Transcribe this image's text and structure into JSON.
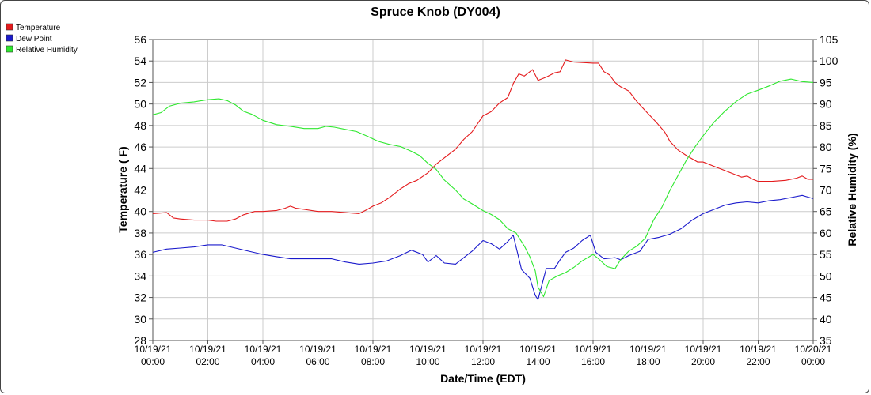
{
  "chart_data": {
    "type": "line",
    "title": "Spruce Knob (DY004)",
    "xlabel": "Date/Time (EDT)",
    "ylabel_left": "Temperature ( F)",
    "ylabel_right": "Relative Humidity (%)",
    "x_ticks": [
      [
        "10/19/21",
        "00:00"
      ],
      [
        "10/19/21",
        "02:00"
      ],
      [
        "10/19/21",
        "04:00"
      ],
      [
        "10/19/21",
        "06:00"
      ],
      [
        "10/19/21",
        "08:00"
      ],
      [
        "10/19/21",
        "10:00"
      ],
      [
        "10/19/21",
        "12:00"
      ],
      [
        "10/19/21",
        "14:00"
      ],
      [
        "10/19/21",
        "16:00"
      ],
      [
        "10/19/21",
        "18:00"
      ],
      [
        "10/19/21",
        "20:00"
      ],
      [
        "10/19/21",
        "22:00"
      ],
      [
        "10/20/21",
        "00:00"
      ]
    ],
    "x_range_hours": [
      0,
      24
    ],
    "y_left_range": [
      28,
      56
    ],
    "y_left_ticks": [
      28,
      30,
      32,
      34,
      36,
      38,
      40,
      42,
      44,
      46,
      48,
      50,
      52,
      54,
      56
    ],
    "y_right_range": [
      35,
      105
    ],
    "y_right_ticks": [
      35,
      40,
      45,
      50,
      55,
      60,
      65,
      70,
      75,
      80,
      85,
      90,
      95,
      100,
      105
    ],
    "grid": true,
    "legend_position": "top-left",
    "series": [
      {
        "name": "Temperature",
        "color": "#e41a1c",
        "axis": "left",
        "points": [
          [
            0,
            39.8
          ],
          [
            0.5,
            39.9
          ],
          [
            0.75,
            39.4
          ],
          [
            1,
            39.3
          ],
          [
            1.5,
            39.2
          ],
          [
            2,
            39.2
          ],
          [
            2.3,
            39.1
          ],
          [
            2.7,
            39.1
          ],
          [
            3,
            39.3
          ],
          [
            3.3,
            39.7
          ],
          [
            3.7,
            40.0
          ],
          [
            4,
            40.0
          ],
          [
            4.5,
            40.1
          ],
          [
            4.8,
            40.3
          ],
          [
            5,
            40.5
          ],
          [
            5.2,
            40.3
          ],
          [
            5.5,
            40.2
          ],
          [
            6,
            40.0
          ],
          [
            6.5,
            40.0
          ],
          [
            7,
            39.9
          ],
          [
            7.5,
            39.8
          ],
          [
            7.8,
            40.2
          ],
          [
            8,
            40.5
          ],
          [
            8.3,
            40.8
          ],
          [
            8.6,
            41.3
          ],
          [
            9,
            42.1
          ],
          [
            9.3,
            42.6
          ],
          [
            9.6,
            42.9
          ],
          [
            10,
            43.6
          ],
          [
            10.3,
            44.4
          ],
          [
            10.6,
            45.0
          ],
          [
            11,
            45.8
          ],
          [
            11.3,
            46.7
          ],
          [
            11.6,
            47.4
          ],
          [
            12,
            48.9
          ],
          [
            12.3,
            49.3
          ],
          [
            12.6,
            50.1
          ],
          [
            12.9,
            50.6
          ],
          [
            13.1,
            51.9
          ],
          [
            13.3,
            52.8
          ],
          [
            13.5,
            52.6
          ],
          [
            13.8,
            53.2
          ],
          [
            14,
            52.2
          ],
          [
            14.3,
            52.5
          ],
          [
            14.6,
            52.9
          ],
          [
            14.8,
            53.0
          ],
          [
            15,
            54.1
          ],
          [
            15.3,
            53.9
          ],
          [
            16,
            53.8
          ],
          [
            16.2,
            53.8
          ],
          [
            16.4,
            53.0
          ],
          [
            16.6,
            52.7
          ],
          [
            16.8,
            52.0
          ],
          [
            17,
            51.6
          ],
          [
            17.3,
            51.2
          ],
          [
            17.6,
            50.2
          ],
          [
            18,
            49.1
          ],
          [
            18.3,
            48.3
          ],
          [
            18.6,
            47.4
          ],
          [
            18.8,
            46.5
          ],
          [
            19.1,
            45.7
          ],
          [
            19.4,
            45.2
          ],
          [
            19.8,
            44.6
          ],
          [
            20,
            44.6
          ],
          [
            20.4,
            44.2
          ],
          [
            20.8,
            43.8
          ],
          [
            21.1,
            43.5
          ],
          [
            21.4,
            43.2
          ],
          [
            21.6,
            43.3
          ],
          [
            21.8,
            43.0
          ],
          [
            22,
            42.8
          ],
          [
            22.5,
            42.8
          ],
          [
            23,
            42.9
          ],
          [
            23.4,
            43.1
          ],
          [
            23.6,
            43.3
          ],
          [
            23.8,
            43.0
          ],
          [
            24,
            43.0
          ]
        ]
      },
      {
        "name": "Dew Point",
        "color": "#1a1acc",
        "axis": "left",
        "points": [
          [
            0,
            36.2
          ],
          [
            0.5,
            36.5
          ],
          [
            1,
            36.6
          ],
          [
            1.5,
            36.7
          ],
          [
            2,
            36.9
          ],
          [
            2.5,
            36.9
          ],
          [
            3,
            36.6
          ],
          [
            3.5,
            36.3
          ],
          [
            4,
            36.0
          ],
          [
            4.5,
            35.8
          ],
          [
            5,
            35.6
          ],
          [
            5.5,
            35.6
          ],
          [
            6,
            35.6
          ],
          [
            6.5,
            35.6
          ],
          [
            7,
            35.3
          ],
          [
            7.5,
            35.1
          ],
          [
            8,
            35.2
          ],
          [
            8.5,
            35.4
          ],
          [
            9,
            35.9
          ],
          [
            9.4,
            36.4
          ],
          [
            9.8,
            36.0
          ],
          [
            10,
            35.3
          ],
          [
            10.3,
            35.9
          ],
          [
            10.6,
            35.2
          ],
          [
            11,
            35.1
          ],
          [
            11.3,
            35.7
          ],
          [
            11.6,
            36.3
          ],
          [
            12,
            37.3
          ],
          [
            12.3,
            37.0
          ],
          [
            12.6,
            36.5
          ],
          [
            12.9,
            37.2
          ],
          [
            13.1,
            37.8
          ],
          [
            13.4,
            34.6
          ],
          [
            13.7,
            33.8
          ],
          [
            13.9,
            32.2
          ],
          [
            14,
            31.8
          ],
          [
            14.3,
            34.7
          ],
          [
            14.6,
            34.7
          ],
          [
            14.8,
            35.5
          ],
          [
            15,
            36.2
          ],
          [
            15.3,
            36.6
          ],
          [
            15.6,
            37.3
          ],
          [
            15.9,
            37.8
          ],
          [
            16.1,
            36.2
          ],
          [
            16.4,
            35.6
          ],
          [
            16.8,
            35.7
          ],
          [
            17,
            35.5
          ],
          [
            17.3,
            35.9
          ],
          [
            17.7,
            36.3
          ],
          [
            18,
            37.4
          ],
          [
            18.4,
            37.6
          ],
          [
            18.8,
            37.9
          ],
          [
            19.2,
            38.4
          ],
          [
            19.6,
            39.2
          ],
          [
            20,
            39.8
          ],
          [
            20.4,
            40.2
          ],
          [
            20.8,
            40.6
          ],
          [
            21.2,
            40.8
          ],
          [
            21.6,
            40.9
          ],
          [
            22,
            40.8
          ],
          [
            22.4,
            41.0
          ],
          [
            22.8,
            41.1
          ],
          [
            23.2,
            41.3
          ],
          [
            23.6,
            41.5
          ],
          [
            24,
            41.2
          ]
        ]
      },
      {
        "name": "Relative Humidity",
        "color": "#2ee82e",
        "axis": "right",
        "points": [
          [
            0,
            87.5
          ],
          [
            0.3,
            88
          ],
          [
            0.6,
            89.5
          ],
          [
            1,
            90.2
          ],
          [
            1.5,
            90.5
          ],
          [
            2,
            91
          ],
          [
            2.4,
            91.2
          ],
          [
            2.7,
            90.8
          ],
          [
            3,
            89.8
          ],
          [
            3.3,
            88.3
          ],
          [
            3.6,
            87.6
          ],
          [
            4,
            86.2
          ],
          [
            4.5,
            85.2
          ],
          [
            5,
            84.8
          ],
          [
            5.5,
            84.3
          ],
          [
            6,
            84.3
          ],
          [
            6.3,
            84.8
          ],
          [
            6.6,
            84.6
          ],
          [
            7,
            84.1
          ],
          [
            7.4,
            83.6
          ],
          [
            7.8,
            82.5
          ],
          [
            8.2,
            81.3
          ],
          [
            8.6,
            80.6
          ],
          [
            9,
            80.1
          ],
          [
            9.4,
            79.0
          ],
          [
            9.7,
            78.0
          ],
          [
            10,
            76.2
          ],
          [
            10.3,
            74.8
          ],
          [
            10.6,
            72.3
          ],
          [
            11,
            70.0
          ],
          [
            11.3,
            67.9
          ],
          [
            11.6,
            66.8
          ],
          [
            12,
            65.2
          ],
          [
            12.3,
            64.3
          ],
          [
            12.6,
            63.1
          ],
          [
            12.9,
            61.0
          ],
          [
            13.2,
            60.0
          ],
          [
            13.5,
            57.0
          ],
          [
            13.7,
            54.5
          ],
          [
            13.9,
            51.2
          ],
          [
            14,
            47.4
          ],
          [
            14.2,
            45.2
          ],
          [
            14.4,
            48.9
          ],
          [
            14.7,
            50.0
          ],
          [
            15,
            50.8
          ],
          [
            15.3,
            52.0
          ],
          [
            15.6,
            53.5
          ],
          [
            16,
            55.0
          ],
          [
            16.2,
            54.0
          ],
          [
            16.5,
            52.2
          ],
          [
            16.8,
            51.7
          ],
          [
            17,
            53.8
          ],
          [
            17.3,
            55.8
          ],
          [
            17.6,
            57.0
          ],
          [
            17.9,
            58.8
          ],
          [
            18.2,
            63.0
          ],
          [
            18.5,
            66.0
          ],
          [
            18.8,
            70.0
          ],
          [
            19.1,
            73.5
          ],
          [
            19.4,
            77.0
          ],
          [
            19.7,
            80.0
          ],
          [
            20,
            82.6
          ],
          [
            20.4,
            85.8
          ],
          [
            20.8,
            88.4
          ],
          [
            21.2,
            90.6
          ],
          [
            21.6,
            92.3
          ],
          [
            22,
            93.2
          ],
          [
            22.4,
            94.2
          ],
          [
            22.8,
            95.3
          ],
          [
            23.2,
            95.8
          ],
          [
            23.6,
            95.2
          ],
          [
            24,
            95.0
          ]
        ]
      }
    ]
  }
}
